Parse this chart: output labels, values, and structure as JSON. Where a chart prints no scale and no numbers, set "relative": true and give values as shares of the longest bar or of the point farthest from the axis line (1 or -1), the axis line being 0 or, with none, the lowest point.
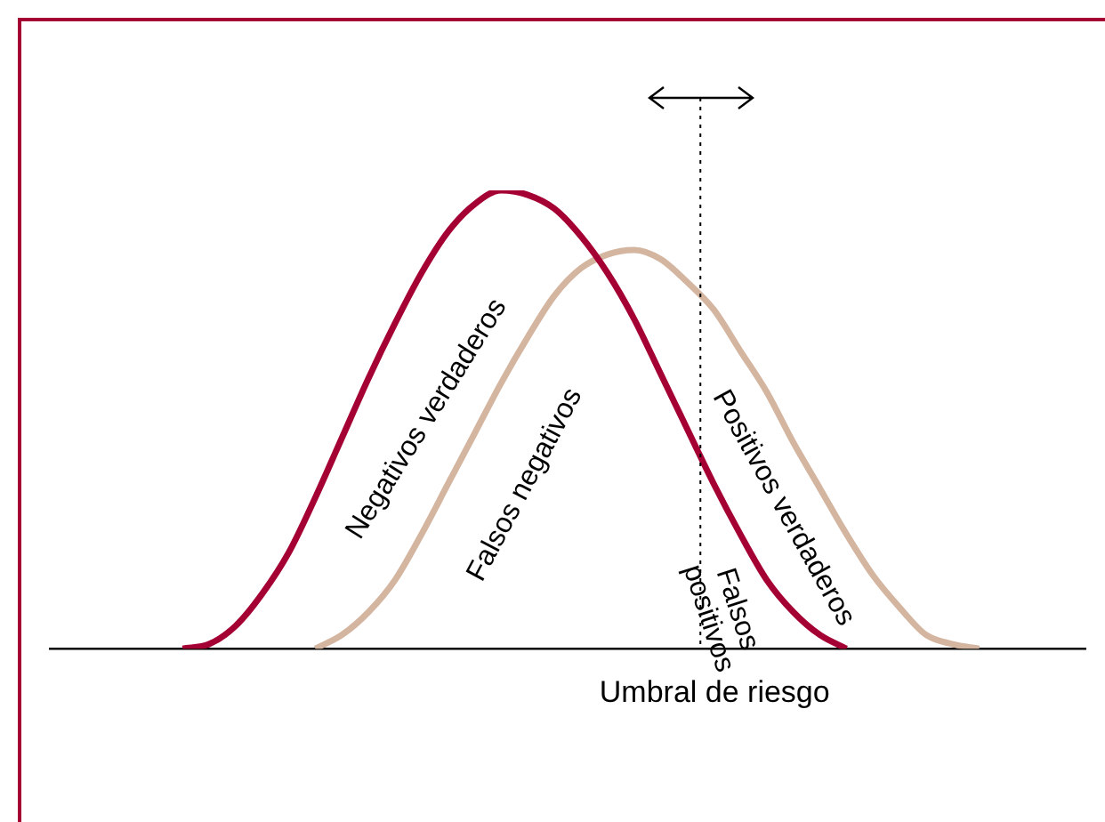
{
  "chart_data": {
    "type": "line",
    "relative": true,
    "categories": [
      null,
      null,
      null,
      null,
      null,
      null,
      null,
      null,
      null,
      null,
      null,
      null,
      null,
      null,
      null,
      null,
      null,
      null,
      null,
      null,
      null,
      null,
      null,
      null,
      null,
      null,
      null,
      null,
      null,
      null,
      null,
      null,
      null,
      null,
      null,
      null,
      null,
      null,
      null,
      null
    ],
    "series": [
      {
        "color": "#a50034",
        "values": [
          null,
          null,
          null,
          null,
          null,
          0,
          0.01,
          0.05,
          0.12,
          0.21,
          0.33,
          0.46,
          0.59,
          0.71,
          0.82,
          0.91,
          0.97,
          1,
          0.99,
          0.96,
          0.9,
          0.82,
          0.72,
          0.6,
          0.48,
          0.36,
          0.25,
          0.15,
          0.08,
          0.03,
          0,
          null,
          null,
          null,
          null,
          null,
          null,
          null,
          null,
          null
        ]
      },
      {
        "color": "#d4b5a0",
        "values": [
          null,
          null,
          null,
          null,
          null,
          null,
          null,
          null,
          null,
          null,
          0,
          0.03,
          0.08,
          0.15,
          0.25,
          0.36,
          0.47,
          0.58,
          0.68,
          0.77,
          0.83,
          0.86,
          0.87,
          0.85,
          0.8,
          0.74,
          0.65,
          0.56,
          0.45,
          0.35,
          0.25,
          0.16,
          0.09,
          0.03,
          0.01,
          0,
          null,
          null,
          null,
          null
        ]
      }
    ],
    "xlabel": "Umbral de riesgo",
    "annotations": [
      "Negativos verdaderos",
      "Falsos negativos",
      "Positivos verdaderos",
      "Falsos positivos"
    ],
    "grid": false,
    "legend": false,
    "marker": "none",
    "line_style": "solid"
  }
}
